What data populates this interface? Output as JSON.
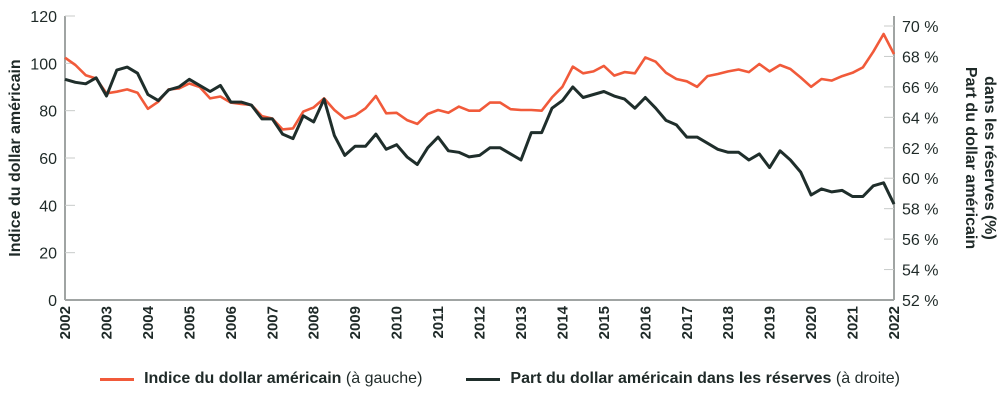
{
  "chart_data": {
    "type": "line",
    "title": "",
    "x_start": 2002,
    "x_step": 0.25,
    "x_ticks": [
      "2002",
      "2003",
      "2004",
      "2005",
      "2006",
      "2007",
      "2008",
      "2009",
      "2010",
      "2011",
      "2012",
      "2013",
      "2014",
      "2015",
      "2016",
      "2017",
      "2018",
      "2019",
      "2020",
      "2021",
      "2022"
    ],
    "xlim": [
      2002,
      2022
    ],
    "ylabel_left": "Indice du dollar américain",
    "ylim_left": [
      0,
      120
    ],
    "yticks_left": [
      "0",
      "20",
      "40",
      "60",
      "80",
      "100",
      "120"
    ],
    "ylabel_right": [
      "Part du dollar américain",
      "dans les réserves (%)"
    ],
    "ylim_right": [
      52,
      70
    ],
    "yticks_right": [
      "52 %",
      "54 %",
      "56 %",
      "58 %",
      "60 %",
      "62 %",
      "64 %",
      "66 %",
      "68 %",
      "70 %"
    ],
    "grid": false,
    "legend_placement": "bottom",
    "series": [
      {
        "name": "Indice du dollar américain",
        "legend_suffix": "(à gauche)",
        "axis": "left",
        "color": "#f15a3a",
        "values": [
          102.4,
          99.3,
          95.0,
          93.6,
          87.3,
          88.0,
          89.0,
          87.6,
          80.8,
          83.8,
          89.0,
          89.4,
          91.5,
          90.0,
          85.2,
          86.0,
          83.4,
          82.8,
          82.4,
          77.7,
          76.7,
          72.1,
          72.5,
          79.6,
          81.4,
          85.2,
          80.3,
          76.7,
          78.0,
          81.0,
          86.2,
          78.9,
          79.1,
          76.0,
          74.4,
          78.6,
          80.3,
          79.1,
          81.7,
          80.0,
          80.0,
          83.4,
          83.4,
          80.6,
          80.3,
          80.3,
          80.0,
          85.6,
          90.1,
          98.6,
          95.8,
          96.6,
          98.9,
          94.8,
          96.3,
          95.8,
          102.5,
          100.7,
          96.0,
          93.4,
          92.4,
          90.1,
          94.6,
          95.5,
          96.6,
          97.4,
          96.3,
          99.7,
          96.6,
          99.3,
          97.6,
          94.0,
          90.1,
          93.4,
          92.7,
          94.6,
          96.0,
          98.3,
          104.9,
          112.4,
          103.9
        ]
      },
      {
        "name": "Part du dollar américain dans les réserves",
        "legend_suffix": "(à droite)",
        "axis": "right",
        "color": "#1f2e2b",
        "values": [
          66.5,
          66.3,
          66.2,
          66.6,
          65.4,
          67.1,
          67.3,
          66.9,
          65.5,
          65.1,
          65.8,
          66.0,
          66.5,
          66.1,
          65.7,
          66.1,
          65.0,
          65.0,
          64.8,
          63.9,
          63.9,
          62.9,
          62.6,
          64.1,
          63.7,
          65.2,
          62.8,
          61.5,
          62.1,
          62.1,
          62.9,
          61.9,
          62.2,
          61.4,
          60.9,
          62.0,
          62.7,
          61.8,
          61.7,
          61.4,
          61.5,
          62.0,
          62.0,
          61.6,
          61.2,
          63.0,
          63.0,
          64.6,
          65.1,
          66.0,
          65.3,
          65.5,
          65.7,
          65.4,
          65.2,
          64.6,
          65.3,
          64.6,
          63.8,
          63.5,
          62.7,
          62.7,
          62.3,
          61.9,
          61.7,
          61.7,
          61.2,
          61.6,
          60.7,
          61.8,
          61.2,
          60.4,
          58.9,
          59.3,
          59.1,
          59.2,
          58.8,
          58.8,
          59.5,
          59.7,
          58.3
        ]
      }
    ]
  }
}
